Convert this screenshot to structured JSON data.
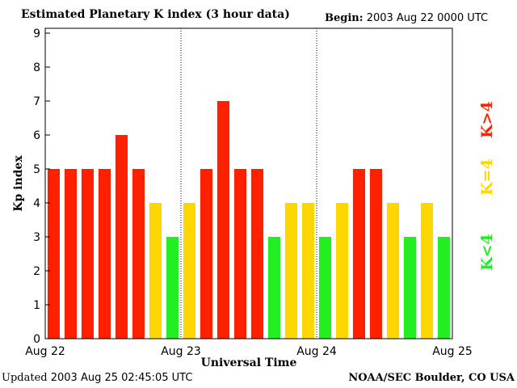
{
  "header": {
    "title": "Estimated Planetary K index (3 hour data)",
    "begin_label": "Begin:",
    "begin_value": "2003 Aug 22 0000 UTC"
  },
  "footer": {
    "updated_label": "Updated",
    "updated_value": "2003 Aug 25 02:45:05 UTC",
    "source": "NOAA/SEC Boulder, CO USA"
  },
  "colors": {
    "high": "#ff2000",
    "equal": "#ffd700",
    "low": "#22ee22"
  },
  "legend": [
    {
      "label": "K<4",
      "color": "#22ee22"
    },
    {
      "label": "K=4",
      "color": "#ffd700"
    },
    {
      "label": "K>4",
      "color": "#ff2000"
    }
  ],
  "chart_data": {
    "type": "bar",
    "title": "Estimated Planetary K index (3 hour data)",
    "xlabel": "Universal Time",
    "ylabel": "Kp index",
    "ylim": [
      0,
      9
    ],
    "yticks": [
      "0",
      "1",
      "2",
      "3",
      "4",
      "5",
      "6",
      "7",
      "8",
      "9"
    ],
    "xticks": [
      "Aug 22",
      "Aug 23",
      "Aug 24",
      "Aug 25"
    ],
    "day_dividers": [
      "Aug 23",
      "Aug 24"
    ],
    "values": [
      5,
      5,
      5,
      5,
      6,
      5,
      4,
      3,
      4,
      5,
      7,
      5,
      5,
      3,
      4,
      4,
      3,
      4,
      5,
      5,
      4,
      3,
      4,
      3
    ]
  }
}
